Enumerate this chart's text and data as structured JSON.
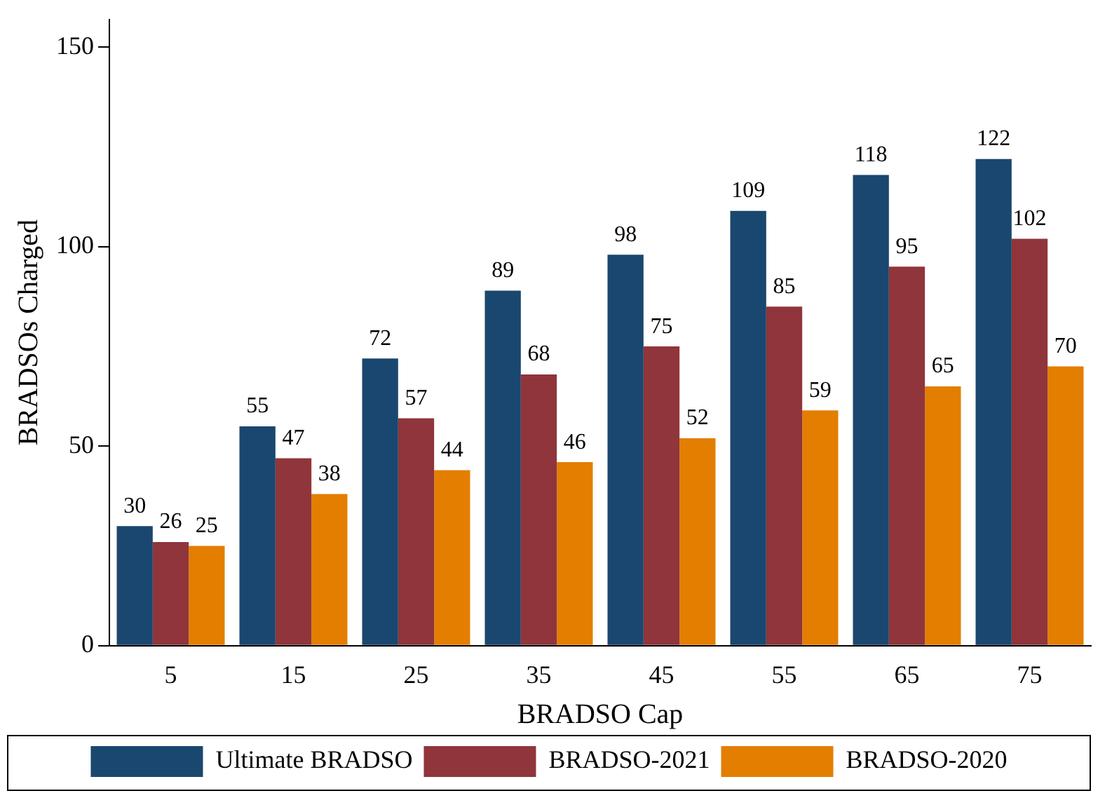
{
  "chart_data": {
    "type": "bar",
    "xlabel": "BRADSO Cap",
    "ylabel": "BRADSOs Charged",
    "categories": [
      "5",
      "15",
      "25",
      "35",
      "45",
      "55",
      "65",
      "75"
    ],
    "series": [
      {
        "name": "Ultimate BRADSO",
        "color": "#1a476f",
        "values": [
          30,
          55,
          72,
          89,
          98,
          109,
          118,
          122
        ]
      },
      {
        "name": "BRADSO-2021",
        "color": "#90353b",
        "values": [
          26,
          47,
          57,
          68,
          75,
          85,
          95,
          102
        ]
      },
      {
        "name": "BRADSO-2020",
        "color": "#e37e00",
        "values": [
          25,
          38,
          44,
          46,
          52,
          59,
          65,
          70
        ]
      }
    ],
    "ylim": [
      0,
      157
    ],
    "yticks": [
      0,
      50,
      100,
      150
    ],
    "grid": false,
    "legend": "bottom",
    "data_labels": true
  }
}
